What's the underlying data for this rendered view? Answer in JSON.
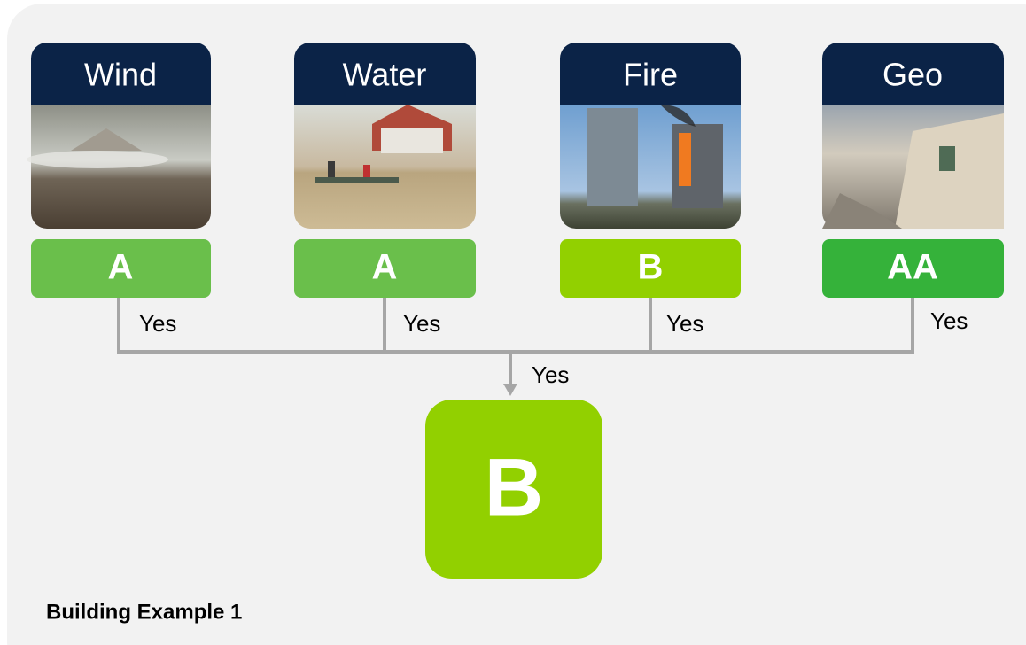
{
  "hazards": [
    {
      "name": "Wind",
      "grade": "A",
      "connector_label": "Yes"
    },
    {
      "name": "Water",
      "grade": "A",
      "connector_label": "Yes"
    },
    {
      "name": "Fire",
      "grade": "B",
      "connector_label": "Yes"
    },
    {
      "name": "Geo",
      "grade": "AA",
      "connector_label": "Yes"
    }
  ],
  "result": {
    "label": "Yes",
    "grade": "B"
  },
  "footer": "Building Example 1"
}
